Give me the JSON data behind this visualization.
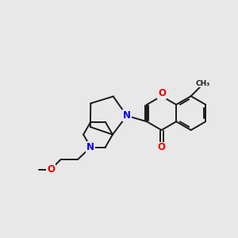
{
  "bg_color": "#e8e8e8",
  "bond_color": "#1a1a1a",
  "N_color": "#0000ee",
  "O_color": "#ee0000",
  "bond_width": 1.4,
  "font_size": 8.5,
  "xlim": [
    0.0,
    10.0
  ],
  "ylim": [
    1.5,
    9.0
  ]
}
